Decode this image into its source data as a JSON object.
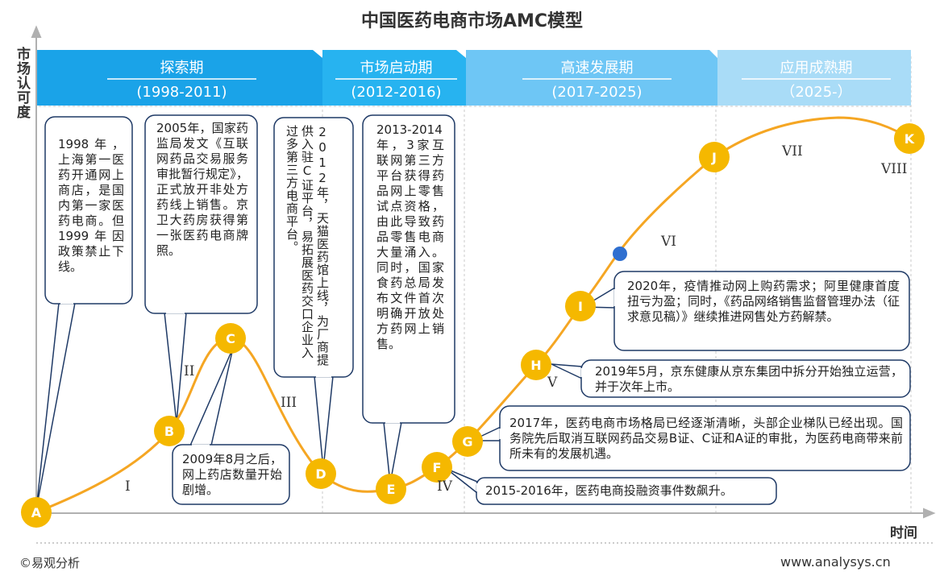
{
  "title": "中国医药电商市场AMC模型",
  "y_axis_label": "市场认可度",
  "x_axis_label": "时间",
  "footer": {
    "left": "©易观分析",
    "right": "www.analysys.cn"
  },
  "phases": [
    {
      "name": "探索期",
      "years": "(1998-2011)",
      "color": "#1aa3e8"
    },
    {
      "name": "市场启动期",
      "years": "(2012-2016)",
      "color": "#27b3f0"
    },
    {
      "name": "高速发展期",
      "years": "(2017-2025)",
      "color": "#6ec6f5"
    },
    {
      "name": "应用成熟期",
      "years": "（2025-）",
      "color": "#a9dcf7"
    }
  ],
  "points": [
    "A",
    "B",
    "C",
    "D",
    "E",
    "F",
    "G",
    "H",
    "I",
    "J",
    "K"
  ],
  "stage_numerals": [
    "I",
    "II",
    "III",
    "IV",
    "V",
    "VI",
    "VII",
    "VIII"
  ],
  "callouts": {
    "c1998": "1998年，上海第一医药开通网上商店，是国内第一家医药电商。但1999年因政策禁止下线。",
    "c2005": "2005年，国家药监局发文《互联网药品交易服务审批暂行规定》，正式放开非处方药线上销售。京卫大药房获得第一张医药电商牌照。",
    "c2009": "2009年8月之后，网上药店数量开始剧增。",
    "c2012": "2012年，天猫医药馆上线，为厂商提供入驻C证平台，易拓展医药交口企业入过多第三方电商平台。",
    "c2013": "2013-2014年，3家互联网第三方平台获得药品网上零售试点资格，由此导致药品零售电商大量涌入。同时，国家食药总局发布文件首次明确开放处方药网上销售。",
    "c2020": "2020年，疫情推动网上购药需求；阿里健康首度扭亏为盈；同时，《药品网络销售监督管理办法（征求意见稿）》继续推进网售处方药解禁。",
    "c2019": "2019年5月，京东健康从京东集团中拆分开始独立运营，并于次年上市。",
    "c2017": "2017年，医药电商市场格局已经逐渐清晰，头部企业梯队已经出现。国务院先后取消互联网药品交易B证、C证和A证的审批，为医药电商带来前所未有的发展机遇。",
    "c2015": "2015-2016年，医药电商投融资事件数飙升。"
  },
  "colors": {
    "curve": "#f5a623",
    "point": "#f5b800",
    "axis": "#b0b0b0",
    "callout_border": "#1f3a66",
    "blue_dot": "#2f6fd0"
  }
}
